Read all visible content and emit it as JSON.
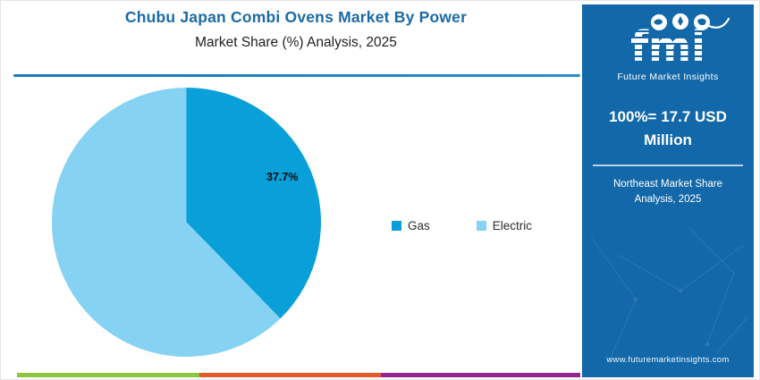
{
  "header": {
    "title": "Chubu Japan Combi Ovens Market By Power",
    "subtitle": "Market Share (%) Analysis, 2025"
  },
  "chart_data": {
    "type": "pie",
    "title": "Chubu Japan Combi Ovens Market By Power — Market Share (%) Analysis, 2025",
    "labels": [
      "Gas",
      "Electric"
    ],
    "values": [
      37.7,
      62.3
    ],
    "colors": [
      "#099fd9",
      "#85d2f2"
    ],
    "value_label_shown": "37.7%",
    "start_angle_deg": 0,
    "direction": "clockwise",
    "legend_position": "right",
    "total_note": "100% = 17.7 USD Million"
  },
  "legend": {
    "items": [
      {
        "label": "Gas",
        "color": "#099fd9"
      },
      {
        "label": "Electric",
        "color": "#85d2f2"
      }
    ]
  },
  "sidebar": {
    "bg": "#1268a8",
    "logo_text": "fmi",
    "logo_tagline": "Future Market Insights",
    "headline": "100%= 17.7 USD Million",
    "subheadline": "Northeast Market Share Analysis, 2025",
    "website": "www.futuremarketinsights.com"
  },
  "footer_strip": {
    "colors": [
      "#8cc63f",
      "#e4582b",
      "#93278f"
    ]
  }
}
